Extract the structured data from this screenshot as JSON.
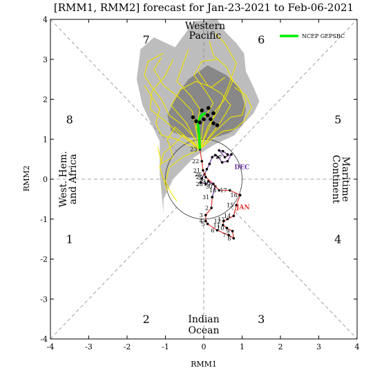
{
  "chart_data": {
    "type": "line",
    "title": "[RMM1, RMM2] forecast for Jan-23-2021 to Feb-06-2021",
    "xlabel": "RMM1",
    "ylabel": "RMM2",
    "xlim": [
      -4,
      4
    ],
    "ylim": [
      -4,
      4
    ],
    "xticks": [
      "-4",
      "-3",
      "-2",
      "-1",
      "0",
      "1",
      "2",
      "3",
      "4"
    ],
    "yticks": [
      "-4",
      "-3",
      "-2",
      "-1",
      "0",
      "1",
      "2",
      "3",
      "4"
    ],
    "grid": false,
    "legend": {
      "placement": "top-right",
      "entries": [
        {
          "name": "NCEP GEPSBC",
          "color": "#00ee00"
        }
      ]
    },
    "phase_labels": [
      {
        "text": "1",
        "x": -3.5,
        "y": -1.5
      },
      {
        "text": "2",
        "x": -1.5,
        "y": -3.5
      },
      {
        "text": "3",
        "x": 1.5,
        "y": -3.5
      },
      {
        "text": "4",
        "x": 3.5,
        "y": -1.5
      },
      {
        "text": "5",
        "x": 3.5,
        "y": 1.5
      },
      {
        "text": "6",
        "x": 1.5,
        "y": 3.5
      },
      {
        "text": "7",
        "x": -1.5,
        "y": 3.5
      },
      {
        "text": "8",
        "x": -3.5,
        "y": 1.5
      }
    ],
    "region_labels": {
      "top": [
        "Western",
        "Pacific"
      ],
      "bottom": [
        "Indian",
        "Ocean"
      ],
      "left": [
        "West. Hem.",
        "and Africa"
      ],
      "right": [
        "Maritime",
        "Continent"
      ]
    },
    "unit_circle_radius": 1,
    "observed_segments": [
      {
        "month": "DEC",
        "color": "#6a2fa0",
        "label_pos": [
          0.8,
          0.25
        ],
        "points": [
          {
            "x": 0.62,
            "y": 0.62,
            "label": ""
          },
          {
            "x": 0.5,
            "y": 0.7,
            "label": ""
          },
          {
            "x": 0.4,
            "y": 0.72,
            "label": ""
          },
          {
            "x": 0.55,
            "y": 0.55,
            "label": "17"
          },
          {
            "x": 0.72,
            "y": 0.62,
            "label": ""
          },
          {
            "x": 0.62,
            "y": 0.45,
            "label": ""
          },
          {
            "x": 0.48,
            "y": 0.42,
            "label": ""
          },
          {
            "x": 0.38,
            "y": 0.55,
            "label": ""
          },
          {
            "x": 0.3,
            "y": 0.6,
            "label": ""
          },
          {
            "x": 0.22,
            "y": 0.55,
            "label": ""
          },
          {
            "x": 0.15,
            "y": 0.38,
            "label": ""
          },
          {
            "x": 0.08,
            "y": 0.25,
            "label": ""
          },
          {
            "x": 0.02,
            "y": 0.12,
            "label": "26"
          },
          {
            "x": -0.05,
            "y": 0.02,
            "label": ""
          },
          {
            "x": -0.08,
            "y": -0.08,
            "label": ""
          },
          {
            "x": 0.05,
            "y": -0.12,
            "label": "28"
          },
          {
            "x": 0.12,
            "y": -0.05,
            "label": "29"
          },
          {
            "x": 0.3,
            "y": -0.18,
            "label": "30"
          },
          {
            "x": 0.22,
            "y": -0.45,
            "label": "31"
          }
        ]
      },
      {
        "month": "JAN",
        "color": "#e0302a",
        "label_pos": [
          0.85,
          -0.75
        ],
        "points": [
          {
            "x": 0.22,
            "y": -0.45,
            "label": ""
          },
          {
            "x": 0.2,
            "y": -0.72,
            "label": "2"
          },
          {
            "x": 0.05,
            "y": -0.9,
            "label": "3"
          },
          {
            "x": 0.05,
            "y": -1.05,
            "label": "4"
          },
          {
            "x": 0.1,
            "y": -1.12,
            "label": "5"
          },
          {
            "x": 0.35,
            "y": -1.28,
            "label": "6"
          },
          {
            "x": 0.65,
            "y": -1.4,
            "label": "7"
          },
          {
            "x": 0.78,
            "y": -1.48,
            "label": "8"
          },
          {
            "x": 0.75,
            "y": -1.3,
            "label": "9"
          },
          {
            "x": 0.6,
            "y": -1.22,
            "label": "10"
          },
          {
            "x": 0.5,
            "y": -1.15,
            "label": "11"
          },
          {
            "x": 0.52,
            "y": -1.05,
            "label": "12"
          },
          {
            "x": 0.62,
            "y": -1.0,
            "label": "13"
          },
          {
            "x": 0.78,
            "y": -0.92,
            "label": "14"
          },
          {
            "x": 0.85,
            "y": -0.65,
            "label": "15"
          },
          {
            "x": 0.95,
            "y": -0.4,
            "label": "16"
          },
          {
            "x": 0.68,
            "y": -0.28,
            "label": "17"
          },
          {
            "x": 0.4,
            "y": -0.28,
            "label": "18"
          },
          {
            "x": 0.25,
            "y": -0.12,
            "label": "19"
          },
          {
            "x": 0.05,
            "y": 0.05,
            "label": "20"
          },
          {
            "x": -0.02,
            "y": 0.22,
            "label": "21"
          },
          {
            "x": -0.05,
            "y": 0.45,
            "label": "22"
          },
          {
            "x": -0.1,
            "y": 0.75,
            "label": "23"
          }
        ]
      }
    ],
    "ensemble_members": [
      [
        [
          -0.1,
          0.75
        ],
        [
          0.05,
          1.1
        ],
        [
          0.2,
          1.4
        ],
        [
          0.3,
          1.7
        ],
        [
          0.55,
          2.0
        ],
        [
          0.75,
          2.45
        ],
        [
          0.6,
          2.8
        ],
        [
          0.25,
          3.1
        ],
        [
          0.15,
          3.45
        ]
      ],
      [
        [
          -0.1,
          0.75
        ],
        [
          -0.25,
          1.05
        ],
        [
          -0.55,
          1.35
        ],
        [
          -0.9,
          1.6
        ],
        [
          -1.1,
          2.0
        ],
        [
          -1.35,
          2.3
        ],
        [
          -1.55,
          2.6
        ],
        [
          -1.45,
          2.95
        ],
        [
          -1.05,
          3.15
        ]
      ],
      [
        [
          -0.1,
          0.75
        ],
        [
          -0.4,
          0.85
        ],
        [
          -0.7,
          1.0
        ],
        [
          -1.1,
          1.1
        ],
        [
          -1.25,
          1.4
        ],
        [
          -1.15,
          1.75
        ],
        [
          -1.35,
          2.05
        ],
        [
          -1.55,
          2.35
        ]
      ],
      [
        [
          -0.1,
          0.75
        ],
        [
          0.2,
          1.0
        ],
        [
          0.5,
          1.2
        ],
        [
          0.8,
          1.25
        ],
        [
          1.05,
          1.45
        ],
        [
          1.25,
          1.8
        ],
        [
          1.1,
          2.1
        ],
        [
          0.8,
          2.3
        ]
      ],
      [
        [
          -0.1,
          0.75
        ],
        [
          -0.3,
          0.95
        ],
        [
          -0.55,
          1.1
        ],
        [
          -0.8,
          0.85
        ],
        [
          -1.05,
          0.65
        ],
        [
          -1.15,
          0.3
        ],
        [
          -1.05,
          0.0
        ],
        [
          -0.95,
          -0.3
        ]
      ],
      [
        [
          -0.1,
          0.75
        ],
        [
          0.1,
          1.3
        ],
        [
          0.4,
          1.75
        ],
        [
          0.65,
          2.35
        ],
        [
          0.85,
          2.9
        ],
        [
          0.55,
          3.4
        ],
        [
          0.3,
          3.65
        ]
      ],
      [
        [
          -0.1,
          0.75
        ],
        [
          -0.6,
          1.1
        ],
        [
          -1.0,
          1.45
        ],
        [
          -1.4,
          1.75
        ],
        [
          -1.35,
          2.2
        ],
        [
          -1.0,
          2.6
        ],
        [
          -0.8,
          3.0
        ]
      ],
      [
        [
          -0.1,
          0.75
        ],
        [
          0.3,
          1.2
        ],
        [
          0.7,
          1.55
        ],
        [
          1.0,
          1.6
        ],
        [
          1.1,
          1.95
        ],
        [
          0.95,
          2.25
        ],
        [
          0.7,
          2.55
        ]
      ],
      [
        [
          -0.1,
          0.75
        ],
        [
          -0.2,
          1.25
        ],
        [
          -0.1,
          1.75
        ],
        [
          -0.35,
          2.1
        ],
        [
          -0.7,
          2.45
        ],
        [
          -0.55,
          2.85
        ],
        [
          -0.4,
          3.25
        ]
      ],
      [
        [
          -0.1,
          0.75
        ],
        [
          -0.45,
          1.4
        ],
        [
          -0.85,
          1.85
        ],
        [
          -0.6,
          2.25
        ],
        [
          -0.2,
          2.45
        ],
        [
          0.2,
          2.3
        ],
        [
          0.55,
          2.55
        ]
      ],
      [
        [
          -0.1,
          0.75
        ],
        [
          0.0,
          1.5
        ],
        [
          0.25,
          1.9
        ],
        [
          0.05,
          2.2
        ],
        [
          -0.25,
          2.6
        ],
        [
          -0.05,
          2.95
        ],
        [
          0.35,
          3.0
        ]
      ],
      [
        [
          -0.1,
          0.75
        ],
        [
          -0.55,
          0.55
        ],
        [
          -0.9,
          0.3
        ],
        [
          -1.0,
          -0.05
        ],
        [
          -0.85,
          -0.35
        ],
        [
          -0.7,
          -0.55
        ]
      ],
      [
        [
          -0.1,
          0.75
        ],
        [
          -0.3,
          1.7
        ],
        [
          -0.65,
          2.05
        ],
        [
          -1.05,
          2.35
        ],
        [
          -1.3,
          2.75
        ],
        [
          -1.1,
          3.05
        ]
      ],
      [
        [
          -0.1,
          0.75
        ],
        [
          0.45,
          1.45
        ],
        [
          0.7,
          1.85
        ],
        [
          0.45,
          2.15
        ],
        [
          0.1,
          2.35
        ],
        [
          -0.15,
          2.7
        ]
      ],
      [
        [
          -0.1,
          0.75
        ],
        [
          -0.75,
          1.3
        ],
        [
          -0.95,
          1.0
        ],
        [
          -0.8,
          0.55
        ],
        [
          -1.1,
          0.4
        ],
        [
          -1.2,
          0.8
        ]
      ]
    ],
    "ensemble_mean": {
      "color": "#00ee00",
      "points": [
        [
          -0.1,
          0.75
        ],
        [
          -0.12,
          1.1
        ],
        [
          -0.15,
          1.35
        ],
        [
          -0.12,
          1.48
        ],
        [
          -0.08,
          1.58
        ],
        [
          -0.03,
          1.62
        ],
        [
          0.05,
          1.65
        ]
      ]
    },
    "mean_markers": [
      [
        -0.2,
        1.45
      ],
      [
        -0.28,
        1.55
      ],
      [
        -0.1,
        1.42
      ],
      [
        0.0,
        1.5
      ],
      [
        0.1,
        1.6
      ],
      [
        0.18,
        1.5
      ],
      [
        0.25,
        1.4
      ],
      [
        0.35,
        1.35
      ],
      [
        -0.05,
        1.72
      ],
      [
        0.12,
        1.78
      ],
      [
        0.25,
        1.65
      ]
    ],
    "uncertainty_outer": [
      [
        -0.75,
        3.3
      ],
      [
        -0.25,
        3.95
      ],
      [
        0.35,
        4.0
      ],
      [
        0.55,
        3.7
      ],
      [
        0.85,
        3.4
      ],
      [
        1.05,
        3.15
      ],
      [
        1.1,
        2.7
      ],
      [
        1.3,
        2.3
      ],
      [
        1.45,
        1.95
      ],
      [
        1.3,
        1.65
      ],
      [
        1.05,
        1.4
      ],
      [
        0.8,
        1.1
      ],
      [
        0.25,
        0.85
      ],
      [
        -0.25,
        0.55
      ],
      [
        -0.8,
        0.0
      ],
      [
        -1.05,
        -0.5
      ],
      [
        -1.05,
        -0.85
      ],
      [
        -1.15,
        0.15
      ],
      [
        -1.15,
        0.95
      ],
      [
        -1.6,
        1.85
      ],
      [
        -1.75,
        2.5
      ],
      [
        -1.65,
        3.25
      ],
      [
        -1.3,
        3.55
      ]
    ],
    "uncertainty_inner": [
      [
        -0.7,
        2.1
      ],
      [
        -0.4,
        2.5
      ],
      [
        0.1,
        2.85
      ],
      [
        0.6,
        2.6
      ],
      [
        0.95,
        2.25
      ],
      [
        1.1,
        1.75
      ],
      [
        1.0,
        1.35
      ],
      [
        0.65,
        1.15
      ],
      [
        0.15,
        1.0
      ],
      [
        -0.45,
        1.05
      ],
      [
        -0.85,
        1.2
      ],
      [
        -0.95,
        1.6
      ]
    ]
  }
}
